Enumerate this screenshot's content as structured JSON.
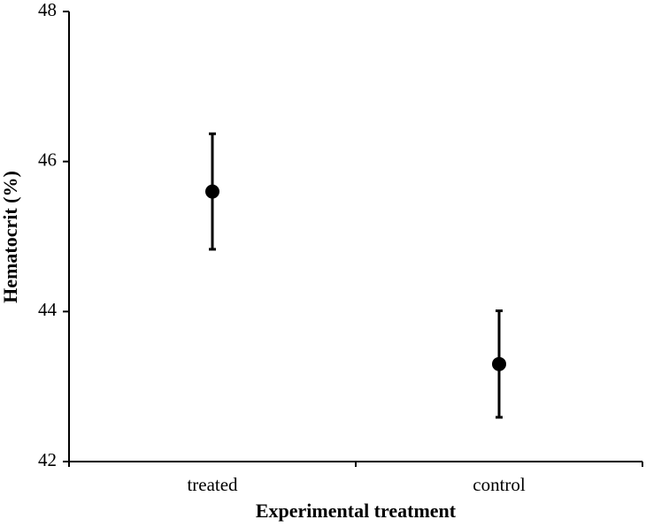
{
  "chart_data": {
    "type": "dot-errorbar",
    "categories": [
      "treated",
      "control"
    ],
    "values": [
      45.6,
      43.3
    ],
    "errors": [
      0.77,
      0.71
    ],
    "color": "#000000",
    "x_label": "Experimental treatment",
    "y_label": "Hematocrit (%)",
    "ylim": [
      42,
      48
    ],
    "yticks": [
      42,
      44,
      46,
      48
    ]
  }
}
